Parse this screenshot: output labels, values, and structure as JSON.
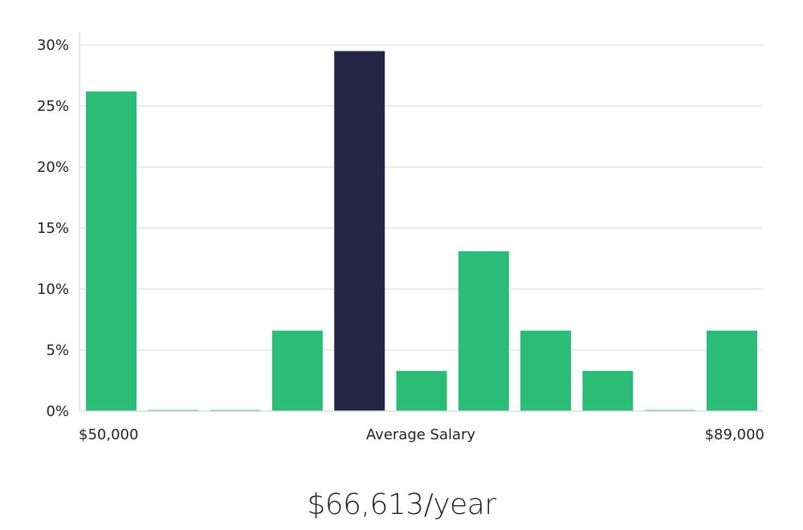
{
  "chart_data": {
    "type": "bar",
    "title": "",
    "xlabel": "Average Salary",
    "x_min_label": "$50,000",
    "x_max_label": "$89,000",
    "ylabel": "",
    "ylim": [
      0,
      30
    ],
    "yticks": [
      0,
      5,
      10,
      15,
      20,
      25,
      30
    ],
    "ytick_labels": [
      "0%",
      "5%",
      "10%",
      "15%",
      "20%",
      "25%",
      "30%"
    ],
    "values": [
      26.2,
      0,
      0,
      6.6,
      29.5,
      3.3,
      13.1,
      6.6,
      3.3,
      0,
      6.6
    ],
    "highlight_index": 4,
    "colors": {
      "bar": "#2bbd78",
      "highlight": "#272545"
    }
  },
  "salary_figure": "$66,613/year"
}
